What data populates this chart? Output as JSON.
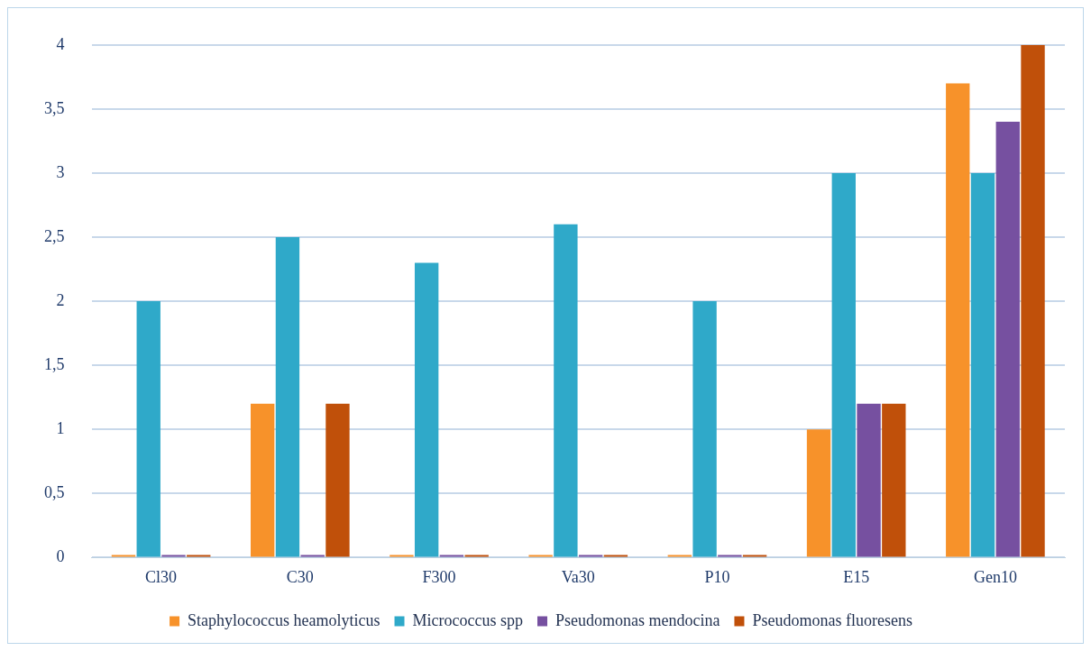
{
  "chart_data": {
    "type": "bar",
    "categories": [
      "Cl30",
      "C30",
      "F300",
      "Va30",
      "P10",
      "E15",
      "Gen10"
    ],
    "series": [
      {
        "name": "Staphylococcus heamolyticus",
        "color": "#f7922a",
        "values": [
          0,
          1.2,
          0,
          0,
          0,
          1,
          3.7
        ]
      },
      {
        "name": "Micrococcus spp",
        "color": "#2fa9c9",
        "values": [
          2,
          2.5,
          2.3,
          2.6,
          2,
          3,
          3
        ]
      },
      {
        "name": "Pseudomonas mendocina",
        "color": "#7650a0",
        "values": [
          0,
          0,
          0,
          0,
          0,
          1.2,
          3.4
        ]
      },
      {
        "name": "Pseudomonas fluoresens",
        "color": "#c0500a",
        "values": [
          0,
          1.2,
          0,
          0,
          0,
          1.2,
          4
        ]
      }
    ],
    "ylim": [
      0,
      4
    ],
    "yticks": [
      0,
      {
        "value": 0.5,
        "label": "0,5"
      },
      1,
      {
        "value": 1.5,
        "label": "1,5"
      },
      2,
      {
        "value": 2.5,
        "label": "2,5"
      },
      3,
      {
        "value": 3.5,
        "label": "3,5"
      },
      4
    ],
    "grid": "y",
    "legend": "bottom"
  }
}
